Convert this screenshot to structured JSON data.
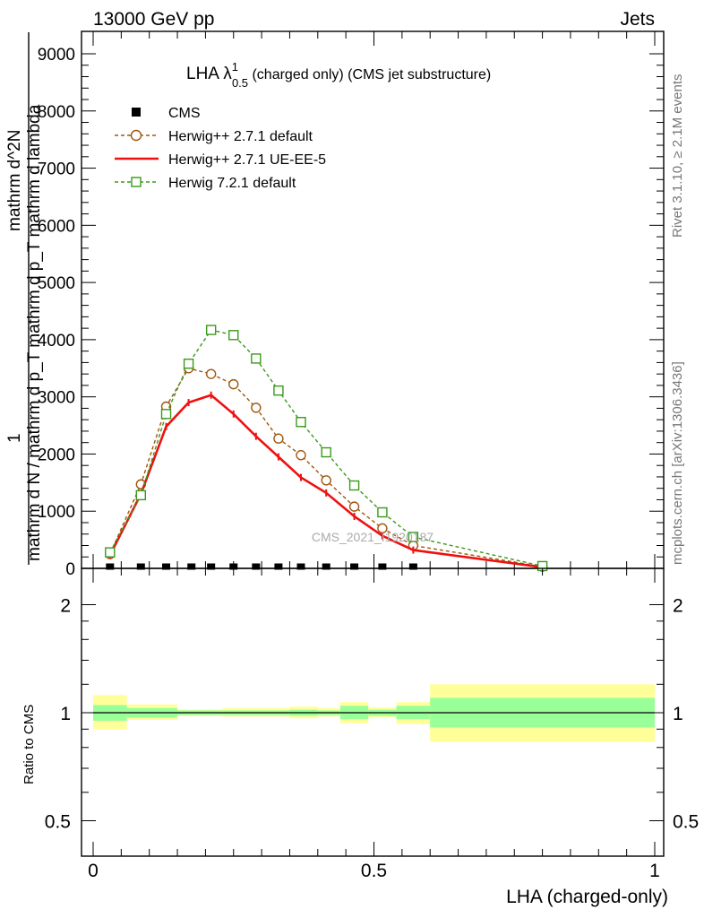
{
  "header": {
    "left": "13000 GeV pp",
    "right": "Jets",
    "rivet_label": "Rivet 3.1.10, ≥ 2.1M events",
    "mcplots_label": "mcplots.cern.ch [arXiv:1306.3436]",
    "watermark": "CMS_2021_I1920187"
  },
  "chart_data": [
    {
      "type": "line",
      "panel": "main",
      "title_main": "LHA λ",
      "title_sup": "1",
      "title_sub": "0.5",
      "title_rest": " (charged only) (CMS jet substructure)",
      "ylabel_numerator": "1",
      "ylabel_denominator": "mathrm d N / mathrm d p_T mathrm d p_T mathrm d lambda",
      "ylabel_fraction_top": "mathrm d^2N",
      "ylim": [
        0,
        9000
      ],
      "xlim": [
        0,
        1
      ],
      "yticks": [
        0,
        1000,
        2000,
        3000,
        4000,
        5000,
        6000,
        7000,
        8000,
        9000
      ],
      "ytick_labels": [
        "0",
        "1000",
        "2000",
        "3000",
        "4000",
        "5000",
        "6000",
        "7000",
        "8000",
        "9000"
      ],
      "legend_position": "top-left",
      "series": [
        {
          "name": "CMS",
          "style": "markers",
          "marker": "filled-square",
          "color": "#000000",
          "x": [
            0.03,
            0.085,
            0.13,
            0.175,
            0.21,
            0.25,
            0.29,
            0.33,
            0.37,
            0.415,
            0.465,
            0.515,
            0.57
          ],
          "y": [
            0,
            0,
            0,
            0,
            0,
            0,
            0,
            0,
            0,
            0,
            0,
            0,
            0
          ]
        },
        {
          "name": "Herwig++ 2.7.1 default",
          "style": "dashed",
          "marker": "open-circle",
          "color": "#a0560d",
          "x": [
            0.03,
            0.085,
            0.13,
            0.17,
            0.21,
            0.25,
            0.29,
            0.33,
            0.37,
            0.415,
            0.465,
            0.515,
            0.57,
            0.8
          ],
          "y": [
            250,
            1470,
            2830,
            3500,
            3400,
            3220,
            2810,
            2270,
            1980,
            1540,
            1080,
            700,
            400,
            30
          ]
        },
        {
          "name": "Herwig++ 2.7.1 UE-EE-5",
          "style": "solid",
          "marker": "none",
          "color": "#ee1111",
          "x": [
            0.03,
            0.085,
            0.13,
            0.17,
            0.21,
            0.25,
            0.29,
            0.33,
            0.37,
            0.415,
            0.465,
            0.515,
            0.57,
            0.8
          ],
          "y": [
            230,
            1300,
            2480,
            2900,
            3030,
            2700,
            2310,
            1950,
            1590,
            1320,
            910,
            570,
            320,
            20
          ]
        },
        {
          "name": "Herwig 7.2.1 default",
          "style": "dashed",
          "marker": "open-square",
          "color": "#3a9a1a",
          "x": [
            0.03,
            0.085,
            0.13,
            0.17,
            0.21,
            0.25,
            0.29,
            0.33,
            0.37,
            0.415,
            0.465,
            0.515,
            0.57,
            0.8
          ],
          "y": [
            280,
            1280,
            2700,
            3580,
            4170,
            4080,
            3670,
            3110,
            2560,
            2030,
            1450,
            980,
            550,
            40
          ]
        }
      ]
    },
    {
      "type": "area",
      "panel": "ratio",
      "ylabel": "Ratio to CMS",
      "xlabel": "LHA (charged-only)",
      "xlim": [
        0,
        1
      ],
      "ylim": [
        0.4,
        2.3
      ],
      "log_scale_y": true,
      "yticks": [
        0.5,
        1,
        2
      ],
      "ytick_labels": [
        "0.5",
        "1",
        "2"
      ],
      "xticks": [
        0,
        0.5,
        1
      ],
      "xtick_labels": [
        "0",
        "0.5",
        "1"
      ],
      "bins": [
        {
          "x0": 0.0,
          "x1": 0.06,
          "inner": [
            0.95,
            1.05
          ],
          "outer": [
            0.9,
            1.12
          ]
        },
        {
          "x0": 0.06,
          "x1": 0.15,
          "inner": [
            0.97,
            1.03
          ],
          "outer": [
            0.955,
            1.055
          ]
        },
        {
          "x0": 0.15,
          "x1": 0.23,
          "inner": [
            0.985,
            1.015
          ],
          "outer": [
            0.98,
            1.02
          ]
        },
        {
          "x0": 0.23,
          "x1": 0.35,
          "inner": [
            0.985,
            1.015
          ],
          "outer": [
            0.975,
            1.03
          ]
        },
        {
          "x0": 0.35,
          "x1": 0.4,
          "inner": [
            0.98,
            1.02
          ],
          "outer": [
            0.965,
            1.04
          ]
        },
        {
          "x0": 0.4,
          "x1": 0.44,
          "inner": [
            0.985,
            1.015
          ],
          "outer": [
            0.975,
            1.03
          ]
        },
        {
          "x0": 0.44,
          "x1": 0.49,
          "inner": [
            0.96,
            1.045
          ],
          "outer": [
            0.935,
            1.07
          ]
        },
        {
          "x0": 0.49,
          "x1": 0.54,
          "inner": [
            0.98,
            1.02
          ],
          "outer": [
            0.97,
            1.035
          ]
        },
        {
          "x0": 0.54,
          "x1": 0.6,
          "inner": [
            0.96,
            1.045
          ],
          "outer": [
            0.93,
            1.07
          ]
        },
        {
          "x0": 0.6,
          "x1": 1.0,
          "inner": [
            0.91,
            1.1
          ],
          "outer": [
            0.83,
            1.2
          ]
        }
      ],
      "inner_color": "#99ff99",
      "outer_color": "#ffff99",
      "reference_line": 1
    }
  ]
}
